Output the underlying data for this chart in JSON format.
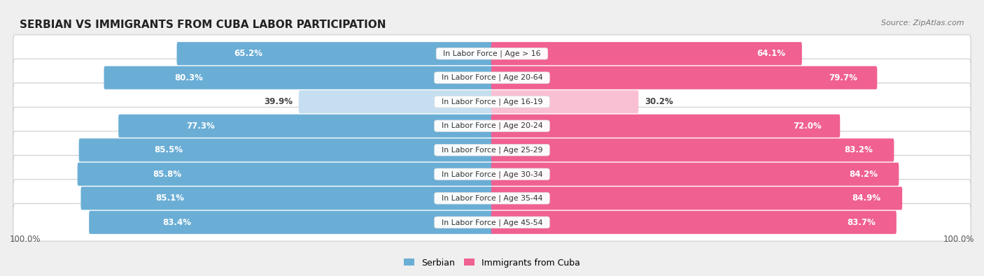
{
  "title": "SERBIAN VS IMMIGRANTS FROM CUBA LABOR PARTICIPATION",
  "source": "Source: ZipAtlas.com",
  "categories": [
    "In Labor Force | Age > 16",
    "In Labor Force | Age 20-64",
    "In Labor Force | Age 16-19",
    "In Labor Force | Age 20-24",
    "In Labor Force | Age 25-29",
    "In Labor Force | Age 30-34",
    "In Labor Force | Age 35-44",
    "In Labor Force | Age 45-54"
  ],
  "serbian_values": [
    65.2,
    80.3,
    39.9,
    77.3,
    85.5,
    85.8,
    85.1,
    83.4
  ],
  "cuba_values": [
    64.1,
    79.7,
    30.2,
    72.0,
    83.2,
    84.2,
    84.9,
    83.7
  ],
  "serbian_color": "#6aaed6",
  "cuba_color": "#f06090",
  "serbian_color_light": "#c5dff0",
  "cuba_color_light": "#f9c0d4",
  "max_value": 100.0,
  "background_color": "#efefef",
  "row_bg_color": "#ffffff",
  "row_shadow_color": "#d8d8d8",
  "legend_serbian": "Serbian",
  "legend_cuba": "Immigrants from Cuba"
}
